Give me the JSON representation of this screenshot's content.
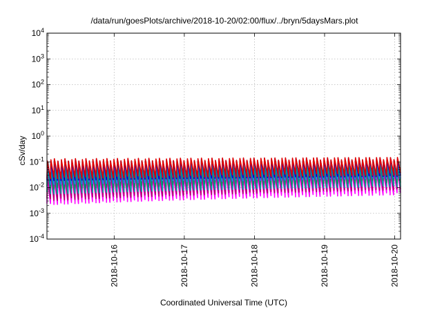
{
  "chart_data": {
    "type": "line",
    "title": "/data/run/goesPlots/archive/2018-10-20/02:00/flux/../bryn/5daysMars.plot",
    "xlabel": "Coordinated Universal Time (UTC)",
    "ylabel": "cSv/day",
    "y_scale": "log",
    "ylim": [
      0.0001,
      10000
    ],
    "xlim": [
      "2018-10-15T01:00",
      "2018-10-20T02:00"
    ],
    "y_ticks": [
      {
        "value": 0.0001,
        "base": "10",
        "exp": "-4"
      },
      {
        "value": 0.001,
        "base": "10",
        "exp": "-3"
      },
      {
        "value": 0.01,
        "base": "10",
        "exp": "-2"
      },
      {
        "value": 0.1,
        "base": "10",
        "exp": "-1"
      },
      {
        "value": 1,
        "base": "10",
        "exp": "0"
      },
      {
        "value": 10,
        "base": "10",
        "exp": "1"
      },
      {
        "value": 100,
        "base": "10",
        "exp": "2"
      },
      {
        "value": 1000,
        "base": "10",
        "exp": "3"
      },
      {
        "value": 10000,
        "base": "10",
        "exp": "4"
      }
    ],
    "x_ticks": [
      "2018-10-16",
      "2018-10-17",
      "2018-10-18",
      "2018-10-19",
      "2018-10-20"
    ],
    "grid": true,
    "series_style": "sawtooth, rapid rise then decay, ~20 cycles per day",
    "series": [
      {
        "color": "#ff00ff",
        "peak": 0.025,
        "trough": 0.0024,
        "peak_end": 0.04,
        "trough_end": 0.006
      },
      {
        "color": "#b0006a",
        "peak": 0.035,
        "trough": 0.0035,
        "peak_end": 0.05,
        "trough_end": 0.009
      },
      {
        "color": "#00a4a4",
        "peak": 0.06,
        "trough": 0.006,
        "peak_end": 0.08,
        "trough_end": 0.012
      },
      {
        "color": "#009060",
        "peak": 0.08,
        "trough": 0.01,
        "peak_end": 0.1,
        "trough_end": 0.018
      },
      {
        "color": "#2080ff",
        "peak": 0.1,
        "trough": 0.015,
        "peak_end": 0.12,
        "trough_end": 0.025
      },
      {
        "color": "#0000cc",
        "peak": 0.11,
        "trough": 0.02,
        "peak_end": 0.13,
        "trough_end": 0.03
      },
      {
        "color": "#e00000",
        "peak": 0.12,
        "trough": 0.025,
        "peak_end": 0.14,
        "trough_end": 0.035
      }
    ]
  }
}
